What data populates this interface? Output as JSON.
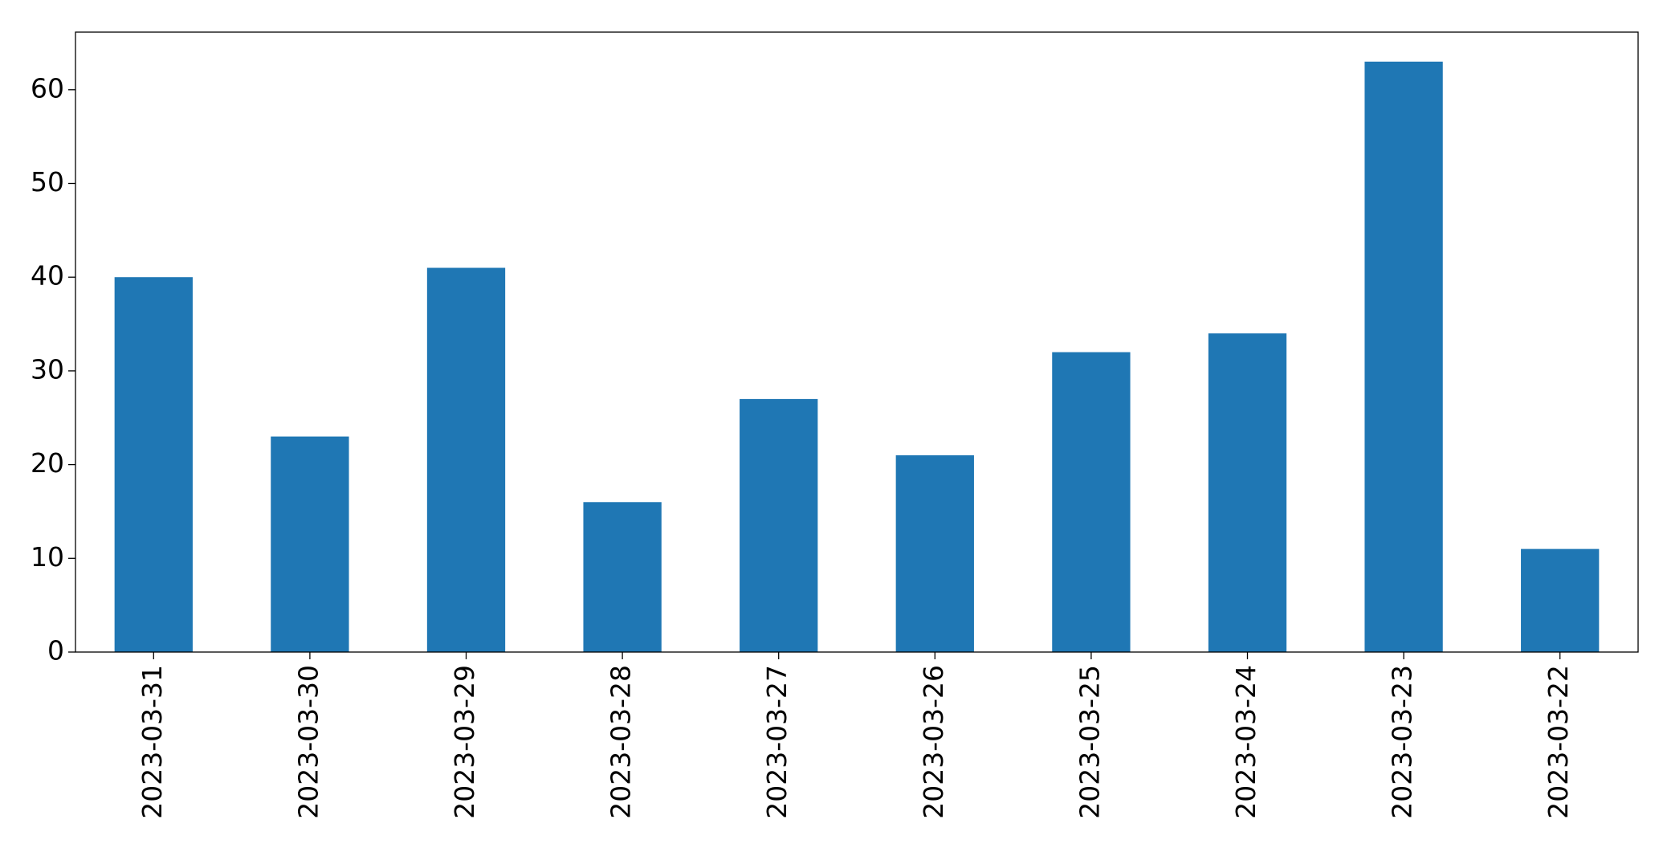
{
  "chart_data": {
    "type": "bar",
    "categories": [
      "2023-03-31",
      "2023-03-30",
      "2023-03-29",
      "2023-03-28",
      "2023-03-27",
      "2023-03-26",
      "2023-03-25",
      "2023-03-24",
      "2023-03-23",
      "2023-03-22"
    ],
    "values": [
      40,
      23,
      41,
      16,
      27,
      21,
      32,
      34,
      63,
      11
    ],
    "color": "#1f77b4",
    "ylim": [
      0,
      66.15
    ],
    "yticks": [
      0,
      10,
      20,
      30,
      40,
      50,
      60
    ],
    "grid": false
  }
}
